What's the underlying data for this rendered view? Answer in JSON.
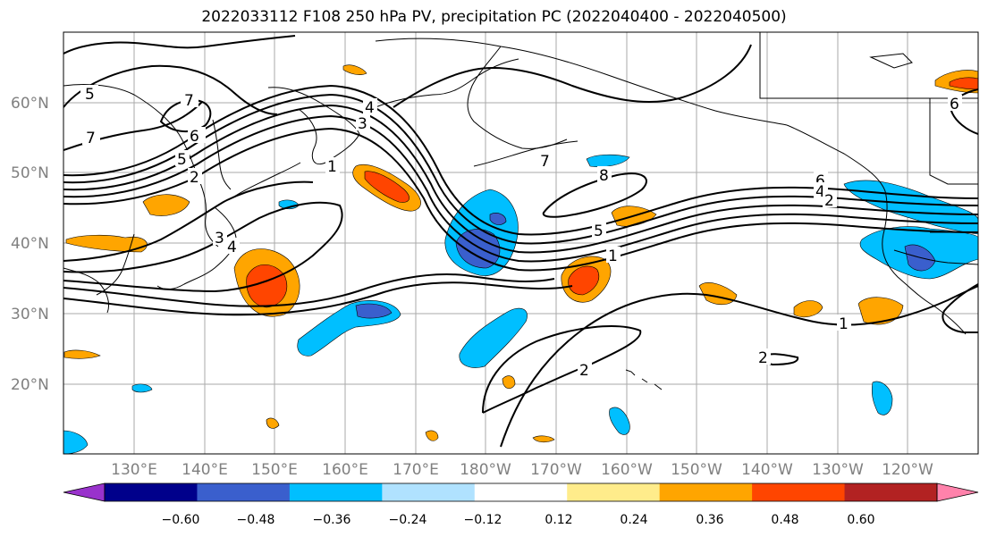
{
  "title": "2022033112 F108 250 hPa PV, precipitation PC (2022040400 - 2022040500)",
  "lat_labels": [
    "60°N",
    "50°N",
    "40°N",
    "30°N",
    "20°N"
  ],
  "lon_labels": [
    "130°E",
    "140°E",
    "150°E",
    "160°E",
    "170°E",
    "180°W",
    "170°W",
    "160°W",
    "150°W",
    "140°W",
    "130°W",
    "120°W"
  ],
  "colorbar": {
    "tick_labels": [
      "−0.60",
      "−0.48",
      "−0.36",
      "−0.24",
      "−0.12",
      "0.12",
      "0.24",
      "0.36",
      "0.48",
      "0.60"
    ],
    "colors": [
      "#9932cc",
      "#00008b",
      "#3a5fcd",
      "#00bfff",
      "#b0e2ff",
      "#ffffff",
      "#ffec8b",
      "#ffa500",
      "#ff4500",
      "#b22222",
      "#ff82ab"
    ]
  },
  "contour_labels": [
    "5",
    "7",
    "7",
    "6",
    "5",
    "2",
    "3",
    "4",
    "1",
    "3",
    "4",
    "7",
    "8",
    "5",
    "1",
    "6",
    "4",
    "2",
    "1",
    "2",
    "2",
    "6"
  ]
}
